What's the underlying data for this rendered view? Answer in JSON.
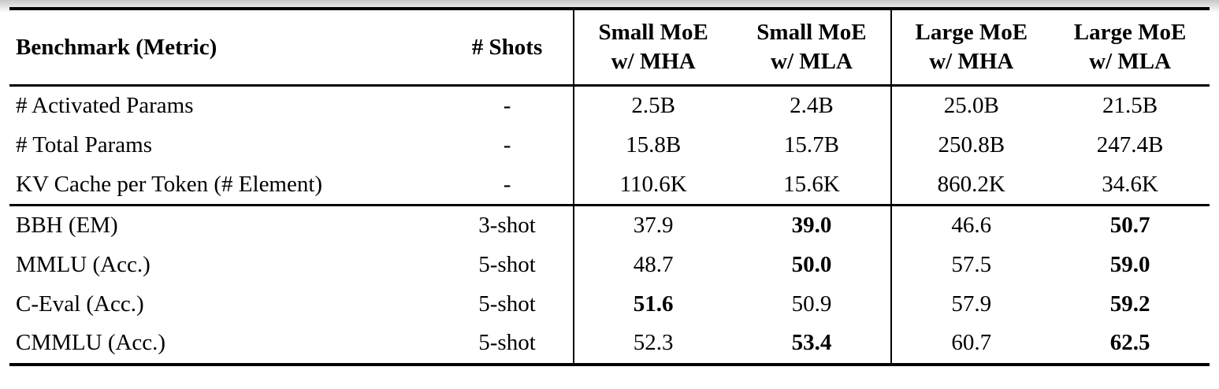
{
  "table": {
    "columns": [
      {
        "label": "Benchmark (Metric)"
      },
      {
        "label": "# Shots"
      },
      {
        "line1": "Small MoE",
        "line2": "w/ MHA"
      },
      {
        "line1": "Small MoE",
        "line2": "w/ MLA"
      },
      {
        "line1": "Large MoE",
        "line2": "w/ MHA"
      },
      {
        "line1": "Large MoE",
        "line2": "w/ MLA"
      }
    ],
    "param_rows": [
      {
        "label": "# Activated Params",
        "shots": "-",
        "values": [
          {
            "text": "2.5B",
            "bold": false
          },
          {
            "text": "2.4B",
            "bold": false
          },
          {
            "text": "25.0B",
            "bold": false
          },
          {
            "text": "21.5B",
            "bold": false
          }
        ]
      },
      {
        "label": "# Total Params",
        "shots": "-",
        "values": [
          {
            "text": "15.8B",
            "bold": false
          },
          {
            "text": "15.7B",
            "bold": false
          },
          {
            "text": "250.8B",
            "bold": false
          },
          {
            "text": "247.4B",
            "bold": false
          }
        ]
      },
      {
        "label": "KV Cache per Token (# Element)",
        "shots": "-",
        "values": [
          {
            "text": "110.6K",
            "bold": false
          },
          {
            "text": "15.6K",
            "bold": false
          },
          {
            "text": "860.2K",
            "bold": false
          },
          {
            "text": "34.6K",
            "bold": false
          }
        ]
      }
    ],
    "benchmark_rows": [
      {
        "label": "BBH (EM)",
        "shots": "3-shot",
        "values": [
          {
            "text": "37.9",
            "bold": false
          },
          {
            "text": "39.0",
            "bold": true
          },
          {
            "text": "46.6",
            "bold": false
          },
          {
            "text": "50.7",
            "bold": true
          }
        ]
      },
      {
        "label": "MMLU (Acc.)",
        "shots": "5-shot",
        "values": [
          {
            "text": "48.7",
            "bold": false
          },
          {
            "text": "50.0",
            "bold": true
          },
          {
            "text": "57.5",
            "bold": false
          },
          {
            "text": "59.0",
            "bold": true
          }
        ]
      },
      {
        "label": "C-Eval (Acc.)",
        "shots": "5-shot",
        "values": [
          {
            "text": "51.6",
            "bold": true
          },
          {
            "text": "50.9",
            "bold": false
          },
          {
            "text": "57.9",
            "bold": false
          },
          {
            "text": "59.2",
            "bold": true
          }
        ]
      },
      {
        "label": "CMMLU (Acc.)",
        "shots": "5-shot",
        "values": [
          {
            "text": "52.3",
            "bold": false
          },
          {
            "text": "53.4",
            "bold": true
          },
          {
            "text": "60.7",
            "bold": false
          },
          {
            "text": "62.5",
            "bold": true
          }
        ]
      }
    ]
  }
}
